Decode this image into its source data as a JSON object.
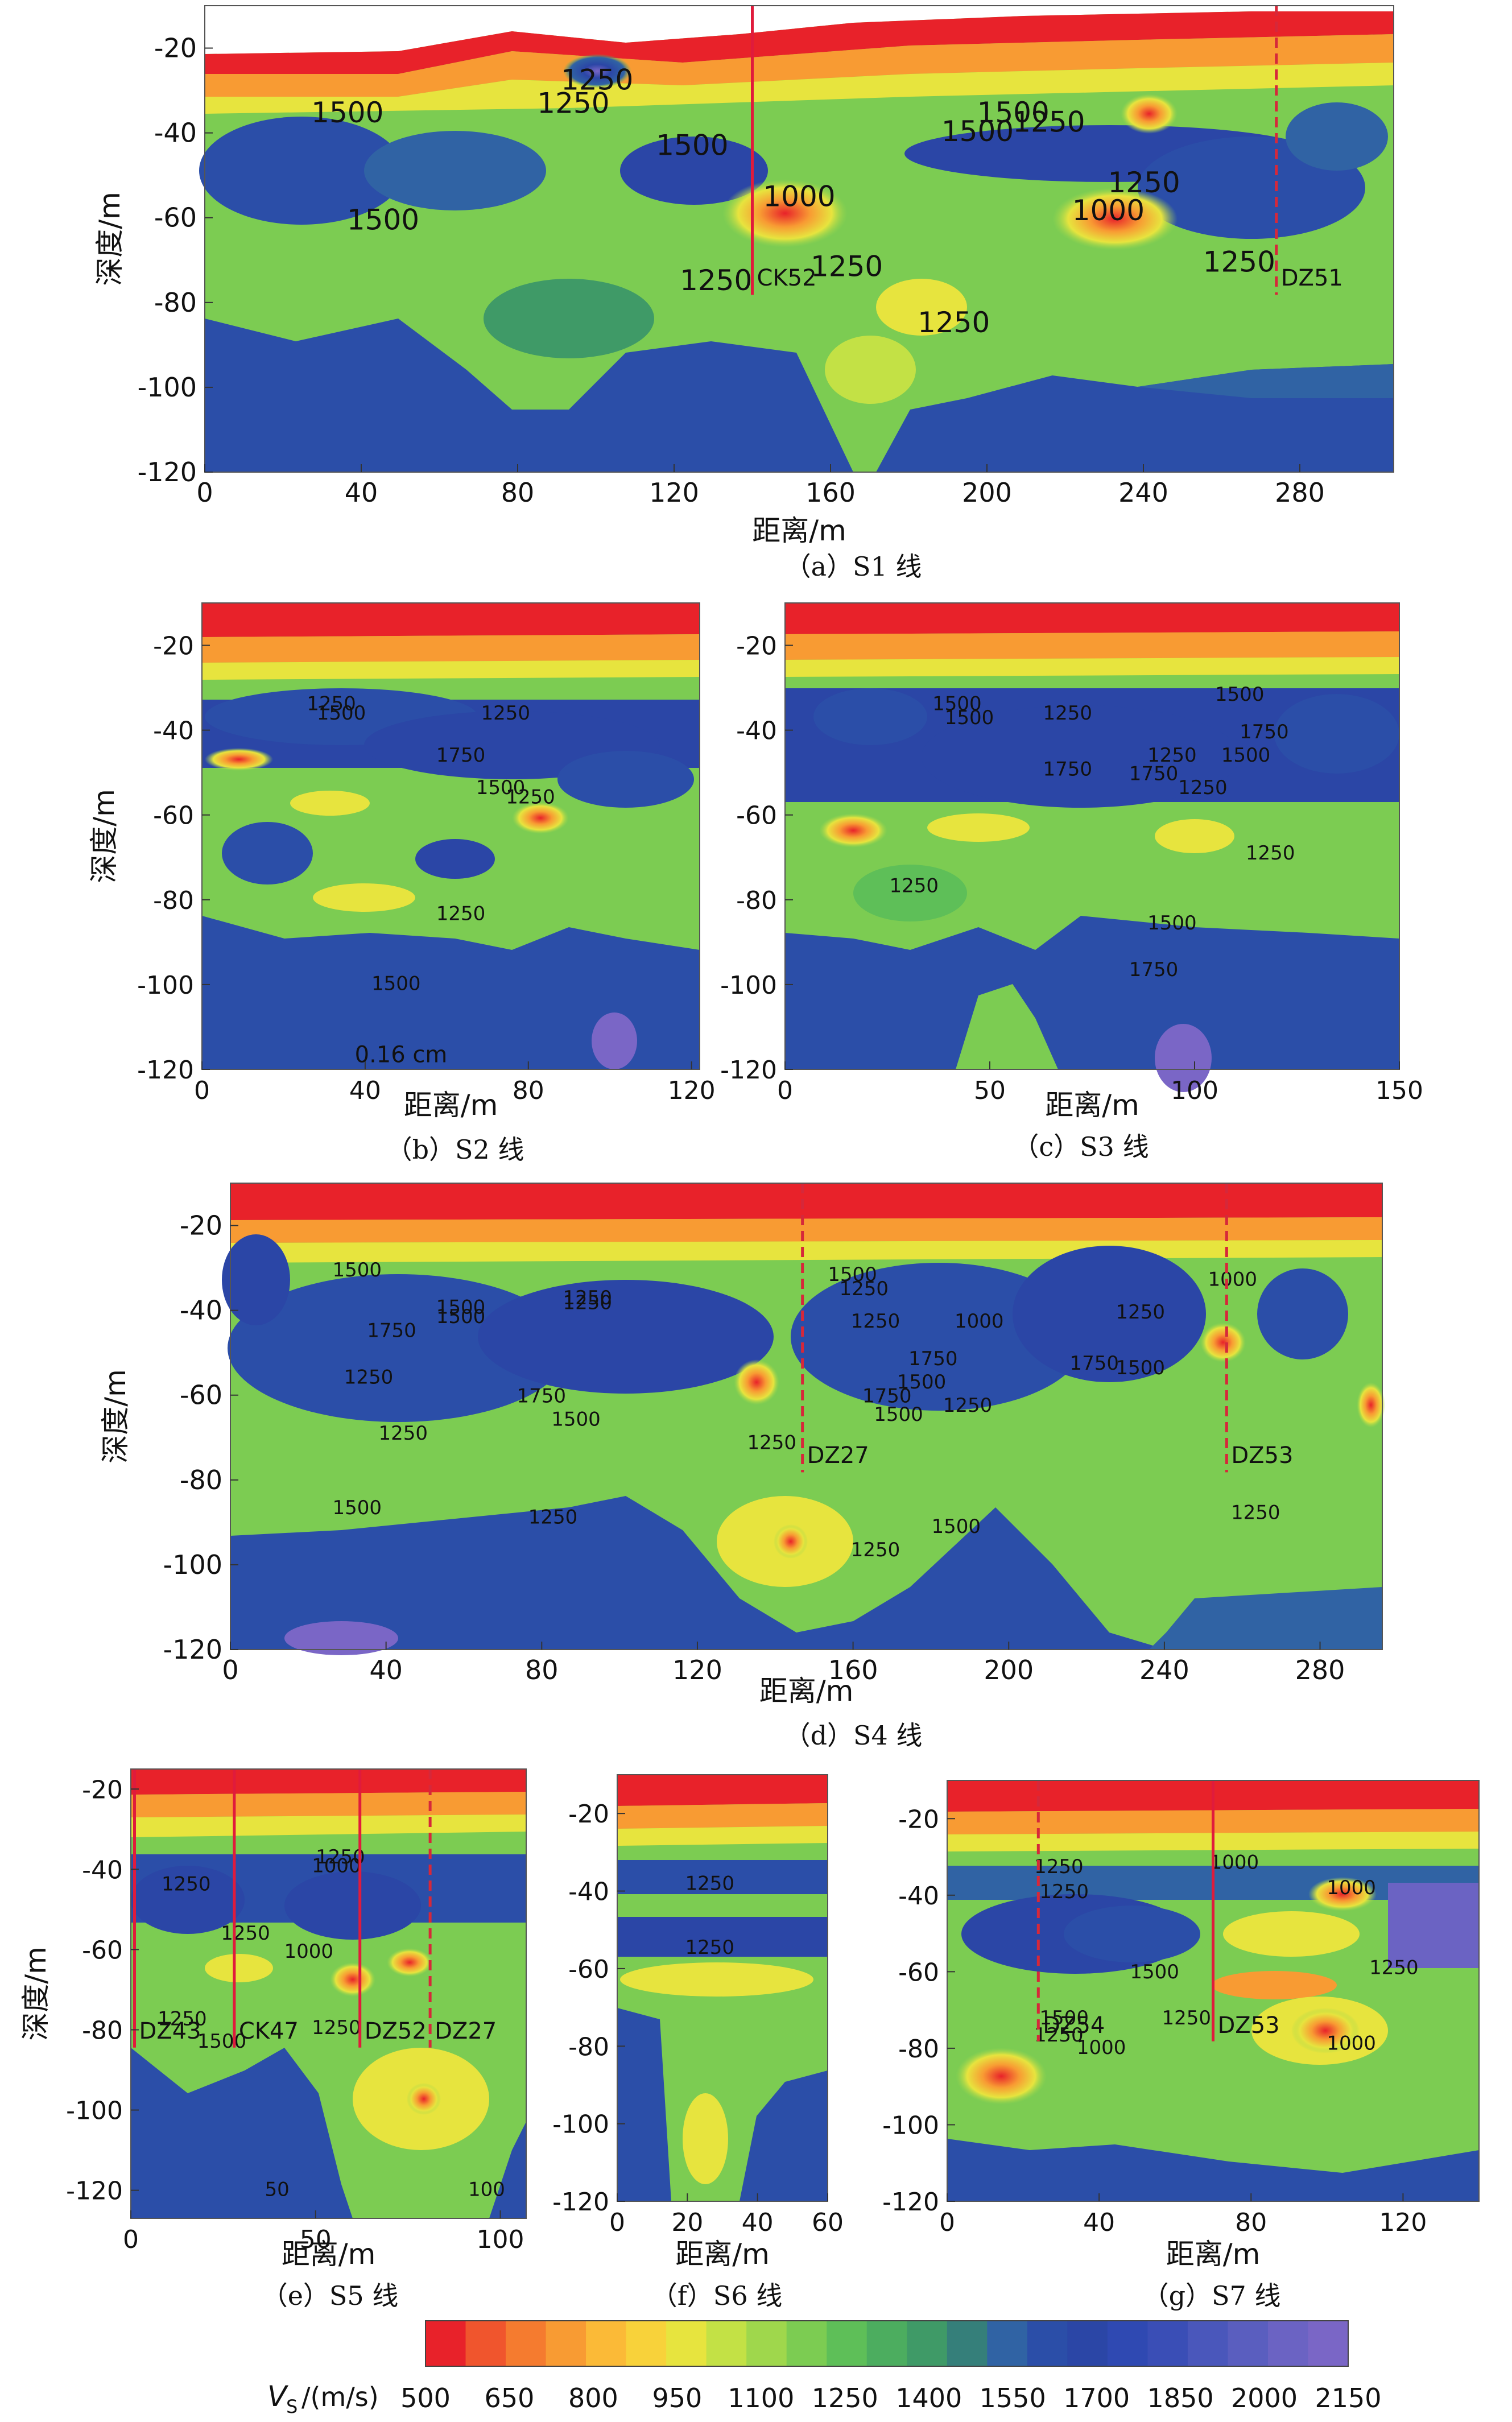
{
  "colors": {
    "scale": [
      "#e8222a",
      "#f0552d",
      "#f57b2f",
      "#f89b33",
      "#fbba37",
      "#f8d23a",
      "#e7e43e",
      "#c3e145",
      "#9fd74c",
      "#7ccc52",
      "#5ebf58",
      "#4cad5f",
      "#3f9a67",
      "#357f7a",
      "#3063a4",
      "#2b4ea8",
      "#2b46a6",
      "#2f49b2",
      "#3a4eb6",
      "#4a57bb",
      "#5a5ebf",
      "#6b63c3",
      "#7a66c6"
    ]
  },
  "colorbar": {
    "label_main": "V",
    "label_sub": "S",
    "label_unit": "/(m/s)",
    "ticks": [
      "500",
      "650",
      "800",
      "950",
      "1100",
      "1250",
      "1400",
      "1550",
      "1700",
      "1850",
      "2000",
      "2150"
    ]
  },
  "chart_data": [
    {
      "id": "a",
      "type": "heatmap",
      "caption": "（a）S1 线",
      "xlabel": "距离/m",
      "ylabel": "深度/m",
      "xlim": [
        0,
        304
      ],
      "ylim": [
        -120,
        -10
      ],
      "xticks": [
        "0",
        "40",
        "80",
        "120",
        "160",
        "200",
        "240",
        "280"
      ],
      "yticks": [
        "-20",
        "-40",
        "-60",
        "-80",
        "-100",
        "-120"
      ],
      "contour_labels": [
        "1500",
        "1250",
        "1500",
        "1250",
        "1500",
        "1250",
        "1000",
        "1250",
        "1500",
        "1250",
        "1250",
        "1000",
        "1500",
        "1250",
        "1250"
      ],
      "boreholes": [
        {
          "name": "CK52",
          "x": 140,
          "style": "solid"
        },
        {
          "name": "DZ51",
          "x": 274,
          "style": "dashed"
        }
      ]
    },
    {
      "id": "b",
      "type": "heatmap",
      "caption": "（b）S2 线",
      "xlabel": "距离/m",
      "ylabel": "深度/m",
      "xlim": [
        0,
        122
      ],
      "ylim": [
        -120,
        -10
      ],
      "xticks": [
        "0",
        "40",
        "80",
        "120"
      ],
      "yticks": [
        "-20",
        "-40",
        "-60",
        "-80",
        "-100",
        "-120"
      ],
      "contour_labels": [
        "1250",
        "1500",
        "1250",
        "1750",
        "1500",
        "1250",
        "1250",
        "1500"
      ],
      "annotations": [
        "0.16 cm"
      ]
    },
    {
      "id": "c",
      "type": "heatmap",
      "caption": "（c）S3 线",
      "xlabel": "距离/m",
      "ylabel": "",
      "xlim": [
        0,
        150
      ],
      "ylim": [
        -120,
        -10
      ],
      "xticks": [
        "0",
        "50",
        "100",
        "150"
      ],
      "yticks": [
        "-20",
        "-40",
        "-60",
        "-80",
        "-100",
        "-120"
      ],
      "contour_labels": [
        "1500",
        "1500",
        "1250",
        "1500",
        "1750",
        "1750",
        "1250",
        "1500",
        "1250",
        "1750",
        "1250",
        "1250",
        "1500",
        "1750"
      ]
    },
    {
      "id": "d",
      "type": "heatmap",
      "caption": "（d）S4 线",
      "xlabel": "距离/m",
      "ylabel": "深度/m",
      "xlim": [
        0,
        296
      ],
      "ylim": [
        -120,
        -10
      ],
      "xticks": [
        "0",
        "40",
        "80",
        "120",
        "160",
        "200",
        "240",
        "280"
      ],
      "yticks": [
        "-20",
        "-40",
        "-60",
        "-80",
        "-100",
        "-120"
      ],
      "contour_labels": [
        "1500",
        "1250",
        "1500",
        "1500",
        "1250",
        "1750",
        "1250",
        "1750",
        "1500",
        "1250",
        "1500",
        "1250",
        "1250",
        "1750",
        "1000",
        "1500",
        "1750",
        "1250",
        "1750",
        "1500",
        "1250",
        "1500",
        "1250",
        "1500",
        "1250",
        "1250",
        "1500",
        "1000",
        "1250"
      ],
      "boreholes": [
        {
          "name": "DZ27",
          "x": 147,
          "style": "dashed"
        },
        {
          "name": "DZ53",
          "x": 256,
          "style": "dashed"
        }
      ]
    },
    {
      "id": "e",
      "type": "heatmap",
      "caption": "（e）S5 线",
      "xlabel": "距离/m",
      "ylabel": "深度/m",
      "xlim": [
        0,
        107
      ],
      "ylim": [
        -127,
        -15
      ],
      "xticks": [
        "0",
        "50",
        "100"
      ],
      "yticks": [
        "-20",
        "-40",
        "-60",
        "-80",
        "-100",
        "-120"
      ],
      "contour_labels": [
        "1250",
        "1000",
        "1250",
        "1250",
        "1000",
        "1250",
        "1500",
        "1250",
        "50",
        "100"
      ],
      "boreholes": [
        {
          "name": "DZ43",
          "x": 1,
          "style": "solid"
        },
        {
          "name": "CK47",
          "x": 28,
          "style": "solid"
        },
        {
          "name": "DZ52",
          "x": 62,
          "style": "solid"
        },
        {
          "name": "DZ27",
          "x": 81,
          "style": "dashed"
        }
      ]
    },
    {
      "id": "f",
      "type": "heatmap",
      "caption": "（f）S6 线",
      "xlabel": "距离/m",
      "ylabel": "",
      "xlim": [
        0,
        60
      ],
      "ylim": [
        -120,
        -10
      ],
      "xticks": [
        "0",
        "20",
        "40",
        "60"
      ],
      "yticks": [
        "-20",
        "-40",
        "-60",
        "-80",
        "-100",
        "-120"
      ],
      "contour_labels": [
        "1250",
        "1250"
      ]
    },
    {
      "id": "g",
      "type": "heatmap",
      "caption": "（g）S7 线",
      "xlabel": "距离/m",
      "ylabel": "",
      "xlim": [
        0,
        140
      ],
      "ylim": [
        -120,
        -10
      ],
      "xticks": [
        "0",
        "40",
        "80",
        "120"
      ],
      "yticks": [
        "-20",
        "-40",
        "-60",
        "-80",
        "-100",
        "-120"
      ],
      "contour_labels": [
        "1250",
        "1250",
        "1000",
        "1000",
        "1500",
        "1250",
        "1500",
        "1250",
        "1250",
        "1000",
        "1000"
      ],
      "boreholes": [
        {
          "name": "DZ54",
          "x": 24,
          "style": "dashed"
        },
        {
          "name": "DZ53",
          "x": 70,
          "style": "solid"
        }
      ]
    }
  ]
}
